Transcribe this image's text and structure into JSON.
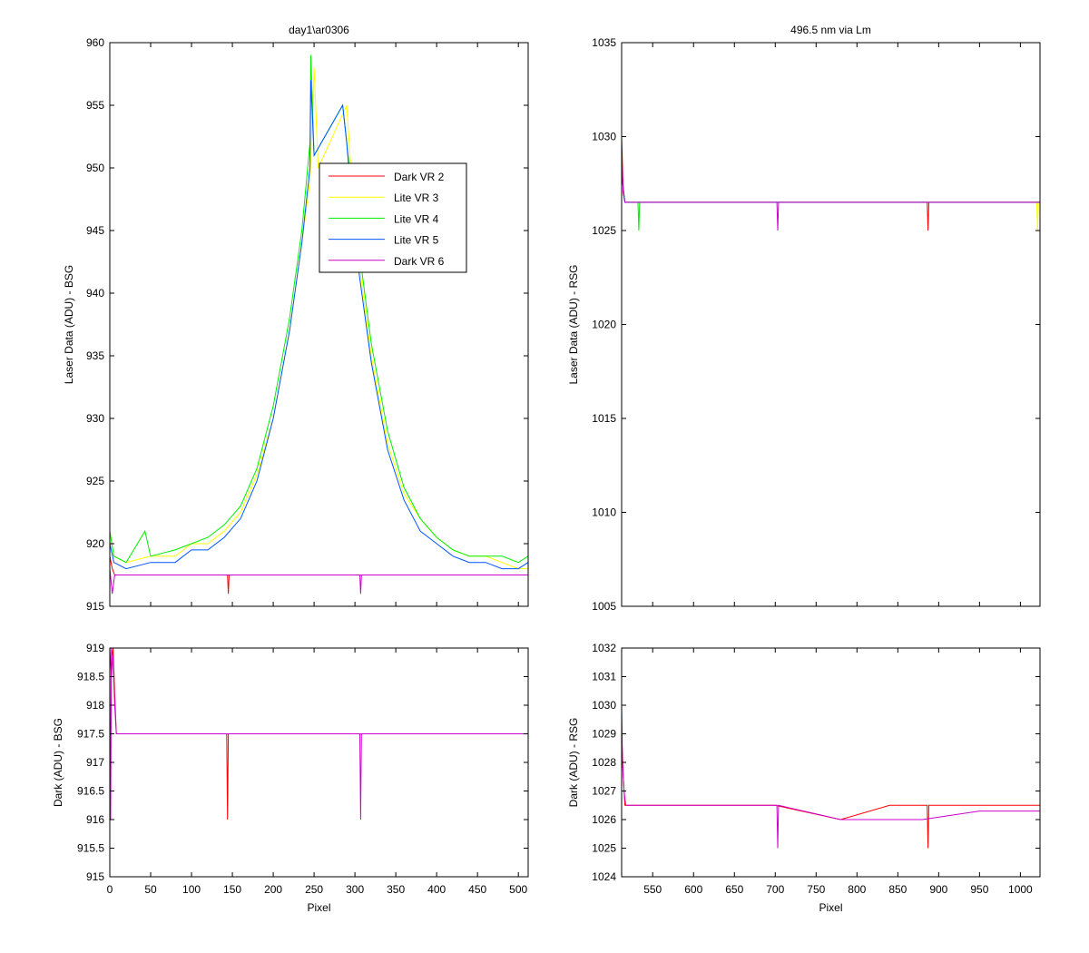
{
  "chart_data": [
    {
      "id": "top-left",
      "type": "line",
      "title": "day1\\ar0306",
      "xlabel": "",
      "ylabel": "Laser Data (ADU) - BSG",
      "xlim": [
        0,
        512
      ],
      "ylim": [
        915,
        960
      ],
      "xticks": [
        0,
        50,
        100,
        150,
        200,
        250,
        300,
        350,
        400,
        450,
        500
      ],
      "xtick_labels_visible": false,
      "yticks": [
        915,
        920,
        925,
        930,
        935,
        940,
        945,
        950,
        955,
        960
      ],
      "grid": false,
      "legend": "inside-upper-center",
      "series": [
        {
          "name": "Dark VR 2",
          "color": "#ff0000",
          "x": [
            0,
            3,
            6,
            30,
            60,
            100,
            144,
            145,
            146,
            200,
            250,
            308,
            350,
            400,
            450,
            512
          ],
          "y": [
            919,
            918,
            917.5,
            917.5,
            917.5,
            917.5,
            917.5,
            916,
            917.5,
            917.5,
            917.5,
            917.5,
            917.5,
            917.5,
            917.5,
            917.5
          ]
        },
        {
          "name": "Lite VR 3",
          "color": "#ffff00",
          "x": [
            0,
            5,
            20,
            50,
            80,
            100,
            120,
            140,
            160,
            180,
            200,
            220,
            235,
            245,
            250,
            255,
            290,
            300,
            320,
            340,
            360,
            380,
            400,
            420,
            440,
            460,
            480,
            500,
            512
          ],
          "y": [
            921,
            919,
            918.5,
            919,
            919,
            920,
            920,
            921,
            922.5,
            925.5,
            930,
            937,
            944,
            949,
            958,
            950,
            955,
            945,
            935,
            928,
            924,
            922,
            920.5,
            919.5,
            919,
            919,
            918.5,
            918,
            918
          ]
        },
        {
          "name": "Lite VR 4",
          "color": "#00ee00",
          "x": [
            0,
            5,
            20,
            43,
            50,
            80,
            100,
            120,
            140,
            160,
            180,
            200,
            220,
            235,
            245,
            246,
            250,
            285,
            290,
            300,
            320,
            340,
            360,
            380,
            400,
            420,
            440,
            460,
            480,
            500,
            512
          ],
          "y": [
            921,
            919,
            918.5,
            921,
            919,
            919.5,
            920,
            920.5,
            921.5,
            923,
            926,
            931,
            938,
            945,
            952,
            959,
            951,
            955,
            952,
            946,
            936,
            929,
            924.5,
            922,
            920.5,
            919.5,
            919,
            919,
            919,
            918.5,
            919
          ]
        },
        {
          "name": "Lite VR 5",
          "color": "#0055ff",
          "x": [
            0,
            5,
            20,
            50,
            80,
            100,
            120,
            140,
            160,
            180,
            200,
            220,
            235,
            245,
            246,
            250,
            285,
            290,
            300,
            320,
            340,
            360,
            380,
            400,
            420,
            440,
            460,
            480,
            500,
            512
          ],
          "y": [
            920,
            918.5,
            918,
            918.5,
            918.5,
            919.5,
            919.5,
            920.5,
            922,
            925,
            930,
            937,
            944,
            950,
            957,
            951,
            955,
            952,
            944,
            934.5,
            927.5,
            923.5,
            921,
            920,
            919,
            918.5,
            918.5,
            918,
            918,
            918.5
          ]
        },
        {
          "name": "Dark VR 6",
          "color": "#cc00cc",
          "x": [
            0,
            3,
            6,
            30,
            60,
            100,
            150,
            200,
            250,
            306,
            307,
            308,
            350,
            400,
            450,
            512
          ],
          "y": [
            918,
            916,
            917.5,
            917.5,
            917.5,
            917.5,
            917.5,
            917.5,
            917.5,
            917.5,
            916,
            917.5,
            917.5,
            917.5,
            917.5,
            917.5
          ]
        }
      ]
    },
    {
      "id": "top-right",
      "type": "line",
      "title": "496.5 nm via Lm",
      "xlabel": "",
      "ylabel": "Laser Data (ADU) - RSG",
      "xlim": [
        512,
        1024
      ],
      "ylim": [
        1005,
        1035
      ],
      "xticks": [
        550,
        600,
        650,
        700,
        750,
        800,
        850,
        900,
        950,
        1000
      ],
      "xtick_labels_visible": false,
      "yticks": [
        1005,
        1010,
        1015,
        1020,
        1025,
        1030,
        1035
      ],
      "grid": false,
      "series": [
        {
          "name": "Dark VR 2",
          "color": "#ff0000",
          "x": [
            512,
            514,
            516,
            600,
            700,
            800,
            886,
            887,
            888,
            950,
            1024
          ],
          "y": [
            1030,
            1027,
            1026.5,
            1026.5,
            1026.5,
            1026.5,
            1026.5,
            1025,
            1026.5,
            1026.5,
            1026.5
          ]
        },
        {
          "name": "Lite VR 3",
          "color": "#ffff00",
          "x": [
            512,
            516,
            600,
            700,
            800,
            900,
            1000,
            1020,
            1021,
            1022,
            1024
          ],
          "y": [
            1028,
            1026.5,
            1026.5,
            1026.5,
            1026.5,
            1026.5,
            1026.5,
            1026.5,
            1025,
            1026.5,
            1026.5
          ]
        },
        {
          "name": "Lite VR 4",
          "color": "#00ee00",
          "x": [
            512,
            516,
            532,
            533,
            534,
            600,
            700,
            800,
            900,
            1000,
            1024
          ],
          "y": [
            1028,
            1026.5,
            1026.5,
            1025,
            1026.5,
            1026.5,
            1026.5,
            1026.5,
            1026.5,
            1026.5,
            1026.5
          ]
        },
        {
          "name": "Lite VR 5",
          "color": "#0055ff",
          "x": [
            512,
            516,
            600,
            700,
            800,
            900,
            1000,
            1024
          ],
          "y": [
            1028,
            1026.5,
            1026.5,
            1026.5,
            1026.5,
            1026.5,
            1026.5,
            1026.5
          ]
        },
        {
          "name": "Dark VR 6",
          "color": "#cc00cc",
          "x": [
            512,
            514,
            516,
            600,
            702,
            703,
            704,
            800,
            900,
            1024
          ],
          "y": [
            1029,
            1027,
            1026.5,
            1026.5,
            1026.5,
            1025,
            1026.5,
            1026.5,
            1026.5,
            1026.5
          ]
        }
      ]
    },
    {
      "id": "bottom-left",
      "type": "line",
      "title": "",
      "xlabel": "Pixel",
      "ylabel": "Dark (ADU) - BSG",
      "xlim": [
        0,
        512
      ],
      "ylim": [
        915,
        919
      ],
      "xticks": [
        0,
        50,
        100,
        150,
        200,
        250,
        300,
        350,
        400,
        450,
        500
      ],
      "xtick_labels_visible": true,
      "yticks": [
        915,
        915.5,
        916,
        916.5,
        917,
        917.5,
        918,
        918.5,
        919
      ],
      "grid": false,
      "series": [
        {
          "name": "Dark VR 2",
          "color": "#ff0000",
          "x": [
            0,
            2,
            4,
            6,
            8,
            60,
            100,
            143,
            144,
            145,
            200,
            250,
            300,
            350,
            400,
            450,
            512
          ],
          "y": [
            919,
            918.5,
            919,
            918.2,
            917.5,
            917.5,
            917.5,
            917.5,
            916,
            917.5,
            917.5,
            917.5,
            917.5,
            917.5,
            917.5,
            917.5,
            917.5
          ]
        },
        {
          "name": "Dark VR 6",
          "color": "#cc00cc",
          "x": [
            0,
            1,
            2,
            4,
            6,
            8,
            60,
            100,
            150,
            200,
            250,
            306,
            307,
            308,
            350,
            400,
            450,
            512
          ],
          "y": [
            919,
            916,
            919,
            918.8,
            918,
            917.5,
            917.5,
            917.5,
            917.5,
            917.5,
            917.5,
            917.5,
            916,
            917.5,
            917.5,
            917.5,
            917.5,
            917.5
          ]
        }
      ]
    },
    {
      "id": "bottom-right",
      "type": "line",
      "title": "",
      "xlabel": "Pixel",
      "ylabel": "Dark (ADU) - RSG",
      "xlim": [
        512,
        1024
      ],
      "ylim": [
        1024,
        1032
      ],
      "xticks": [
        550,
        600,
        650,
        700,
        750,
        800,
        850,
        900,
        950,
        1000
      ],
      "xtick_labels_visible": true,
      "yticks": [
        1024,
        1025,
        1026,
        1027,
        1028,
        1029,
        1030,
        1031,
        1032
      ],
      "grid": false,
      "series": [
        {
          "name": "Dark VR 2",
          "color": "#ff0000",
          "x": [
            512,
            514,
            516,
            600,
            700,
            780,
            840,
            886,
            887,
            888,
            950,
            1024
          ],
          "y": [
            1029,
            1027.5,
            1026.5,
            1026.5,
            1026.5,
            1026,
            1026.5,
            1026.5,
            1025,
            1026.5,
            1026.5,
            1026.5
          ]
        },
        {
          "name": "Dark VR 6",
          "color": "#cc00cc",
          "x": [
            512,
            513,
            515,
            517,
            600,
            700,
            702,
            703,
            704,
            780,
            880,
            950,
            1024
          ],
          "y": [
            1030,
            1028,
            1027,
            1026.5,
            1026.5,
            1026.5,
            1026.5,
            1025,
            1026.5,
            1026,
            1026,
            1026.3,
            1026.3
          ]
        }
      ]
    }
  ]
}
